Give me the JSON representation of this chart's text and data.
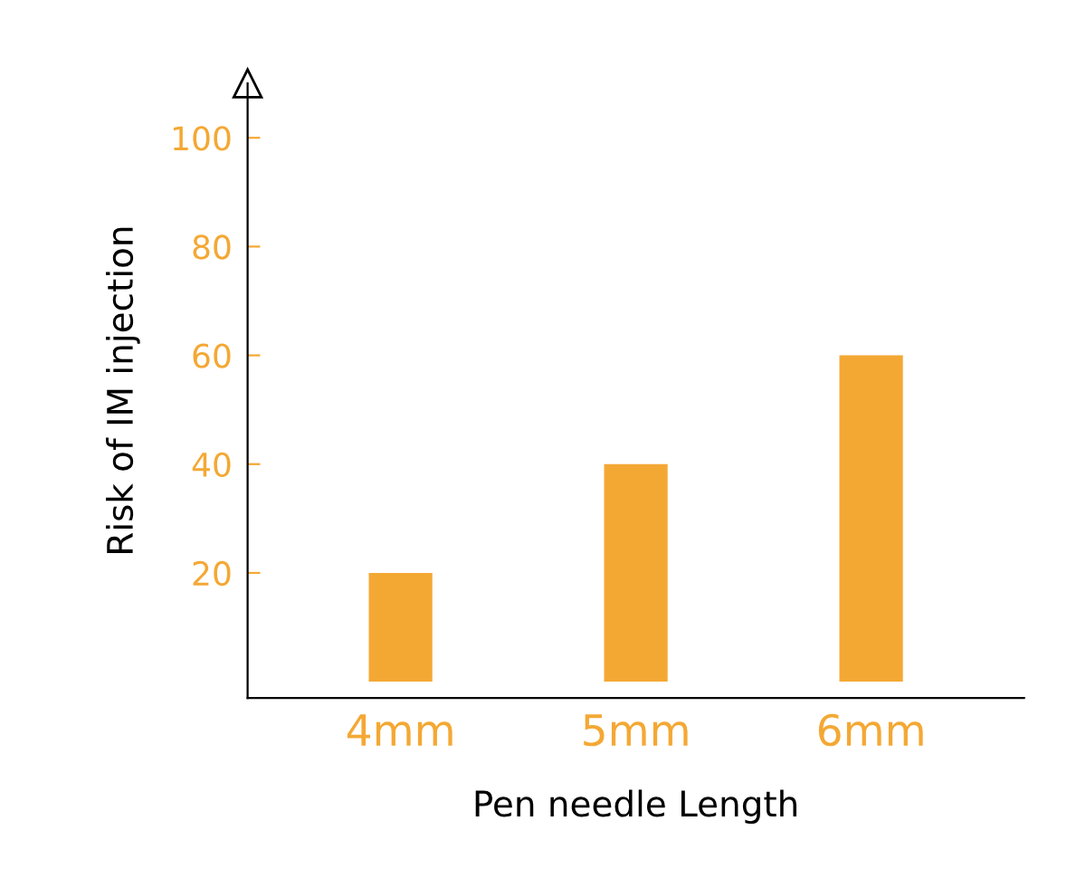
{
  "chart_data": {
    "type": "bar",
    "xlabel": "Pen needle Length",
    "ylabel": "Risk of IM injection",
    "categories": [
      "4mm",
      "5mm",
      "6mm"
    ],
    "values": [
      20,
      40,
      60
    ],
    "color": "#f4a834",
    "ylim": [
      -3,
      110
    ],
    "yticks": [
      20,
      40,
      60,
      80,
      100
    ],
    "grid": false
  }
}
